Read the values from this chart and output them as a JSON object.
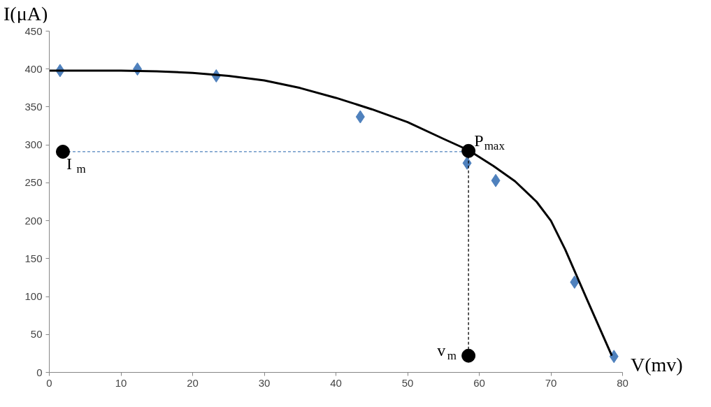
{
  "chart_data": {
    "type": "scatter",
    "xlabel": "V(mv)",
    "ylabel": "I(μA)",
    "xlim": [
      0,
      80
    ],
    "ylim": [
      0,
      450
    ],
    "xticks": [
      0,
      10,
      20,
      30,
      40,
      50,
      60,
      70,
      80
    ],
    "yticks": [
      0,
      50,
      100,
      150,
      200,
      250,
      300,
      350,
      400,
      450
    ],
    "grid": false,
    "series": [
      {
        "marker": "diamond",
        "color": "#4f81bd",
        "x": [
          1.5,
          12.3,
          23.3,
          43.4,
          58.3,
          62.3,
          73.3,
          78.8
        ],
        "values": [
          398,
          400,
          391,
          337,
          276,
          253,
          119,
          21
        ]
      },
      {
        "type": "line",
        "line_style": "solid",
        "color": "#000000",
        "x": [
          0,
          10,
          15,
          20,
          25,
          30,
          35,
          40,
          45,
          50,
          55,
          58.5,
          62,
          65,
          68,
          70,
          72,
          75,
          78.5
        ],
        "values": [
          398,
          398,
          397,
          395,
          391,
          385,
          375,
          362,
          347,
          330,
          308,
          293,
          272,
          252,
          225,
          200,
          162,
          97,
          22
        ]
      },
      {
        "type": "line",
        "line_style": "dashed",
        "color": "#4f81bd",
        "x": [
          1.9,
          58.5
        ],
        "values": [
          291,
          291
        ]
      },
      {
        "type": "line",
        "line_style": "dashed",
        "color": "#000000",
        "x": [
          58.5,
          58.5
        ],
        "values": [
          292,
          22
        ]
      },
      {
        "marker": "circle",
        "color": "#000000",
        "x": [
          1.9,
          58.5,
          58.5
        ],
        "values": [
          291,
          292,
          22
        ]
      }
    ],
    "annotations": [
      "I$_{m}$",
      "P$_{max}$",
      "v$_{m}$"
    ]
  }
}
